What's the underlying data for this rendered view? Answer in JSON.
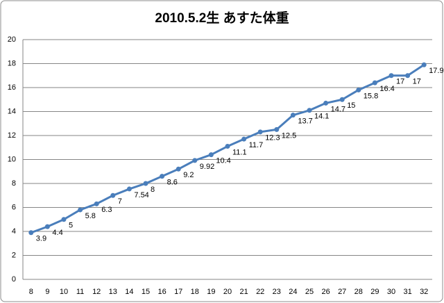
{
  "chart_data": {
    "type": "line",
    "title": "2010.5.2生 あすた体重",
    "categories": [
      8,
      9,
      10,
      11,
      12,
      13,
      14,
      15,
      16,
      17,
      18,
      19,
      20,
      21,
      22,
      23,
      24,
      25,
      26,
      27,
      28,
      29,
      30,
      31,
      32
    ],
    "values": [
      3.9,
      4.4,
      5,
      5.8,
      6.3,
      7,
      7.54,
      8,
      8.6,
      9.2,
      9.92,
      10.4,
      11.1,
      11.7,
      12.3,
      12.5,
      13.7,
      14.1,
      14.7,
      15,
      15.8,
      16.4,
      17,
      17,
      17.9
    ],
    "color": "#4a7ebb",
    "ylim": [
      0,
      20
    ],
    "yticks": [
      0,
      2,
      4,
      6,
      8,
      10,
      12,
      14,
      16,
      18,
      20
    ],
    "grid": true
  }
}
